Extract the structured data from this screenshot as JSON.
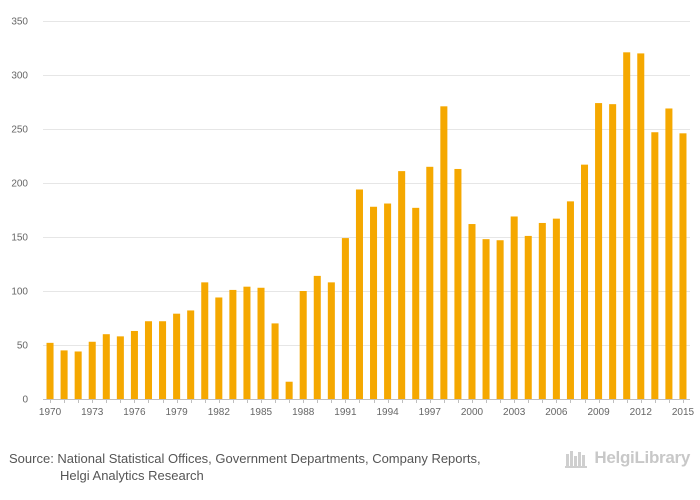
{
  "chart_data": {
    "type": "bar",
    "title": "",
    "xlabel": "",
    "ylabel": "",
    "ylim": [
      0,
      350
    ],
    "yticks": [
      0,
      50,
      100,
      150,
      200,
      250,
      300,
      350
    ],
    "categories": [
      "1970",
      "1971",
      "1972",
      "1973",
      "1974",
      "1975",
      "1976",
      "1977",
      "1978",
      "1979",
      "1980",
      "1981",
      "1982",
      "1983",
      "1984",
      "1985",
      "1986",
      "1987",
      "1988",
      "1989",
      "1990",
      "1991",
      "1992",
      "1993",
      "1994",
      "1995",
      "1996",
      "1997",
      "1998",
      "1999",
      "2000",
      "2001",
      "2002",
      "2003",
      "2004",
      "2005",
      "2006",
      "2007",
      "2008",
      "2009",
      "2010",
      "2011",
      "2012",
      "2013",
      "2014",
      "2015"
    ],
    "xtick_labels": [
      "1970",
      "1973",
      "1976",
      "1979",
      "1982",
      "1985",
      "1988",
      "1991",
      "1994",
      "1997",
      "2000",
      "2003",
      "2006",
      "2009",
      "2012",
      "2015"
    ],
    "series": [
      {
        "name": "",
        "color": "#f5a800",
        "values": [
          52,
          45,
          44,
          53,
          60,
          58,
          63,
          72,
          72,
          79,
          82,
          108,
          94,
          101,
          104,
          103,
          70,
          16,
          100,
          114,
          108,
          149,
          194,
          178,
          181,
          211,
          177,
          215,
          271,
          213,
          162,
          148,
          147,
          169,
          151,
          163,
          167,
          183,
          217,
          274,
          273,
          321,
          320,
          247,
          269,
          246
        ]
      }
    ],
    "grid": true
  },
  "footer": {
    "source_line1": "Source: National Statistical Offices, Government Departments, Company Reports,",
    "source_line2": "Helgi Analytics Research",
    "brand_name": "HelgiLibrary"
  }
}
